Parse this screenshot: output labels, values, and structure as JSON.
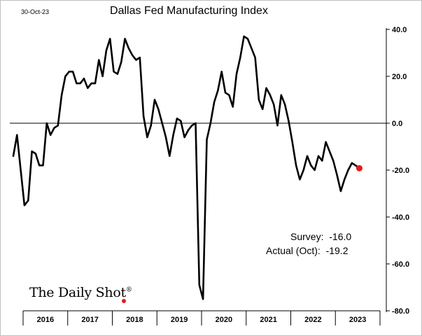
{
  "header": {
    "date": "30-Oct-23"
  },
  "chart_data": {
    "type": "line",
    "title": "Dallas Fed Manufacturing Index",
    "xlabel": "",
    "ylabel": "",
    "ylim": [
      -80,
      40
    ],
    "yticks": [
      40,
      20,
      0,
      -20,
      -40,
      -60,
      -80
    ],
    "ytick_labels": [
      "40.0",
      "20.0",
      "0.0",
      "-20.0",
      "-40.0",
      "-60.0",
      "-80.0"
    ],
    "year_labels": [
      "2016",
      "2017",
      "2018",
      "2019",
      "2020",
      "2021",
      "2022",
      "2023"
    ],
    "y_axis_side": "right",
    "grid": false,
    "zero_line": true,
    "line_color": "#000000",
    "highlight_color": "#e41c1c",
    "series": [
      {
        "x": [
          "2016-01",
          "2016-02",
          "2016-03",
          "2016-04",
          "2016-05",
          "2016-06",
          "2016-07",
          "2016-08",
          "2016-09",
          "2016-10",
          "2016-11",
          "2016-12",
          "2017-01",
          "2017-02",
          "2017-03",
          "2017-04",
          "2017-05",
          "2017-06",
          "2017-07",
          "2017-08",
          "2017-09",
          "2017-10",
          "2017-11",
          "2017-12",
          "2018-01",
          "2018-02",
          "2018-03",
          "2018-04",
          "2018-05",
          "2018-06",
          "2018-07",
          "2018-08",
          "2018-09",
          "2018-10",
          "2018-11",
          "2018-12",
          "2019-01",
          "2019-02",
          "2019-03",
          "2019-04",
          "2019-05",
          "2019-06",
          "2019-07",
          "2019-08",
          "2019-09",
          "2019-10",
          "2019-11",
          "2019-12",
          "2020-01",
          "2020-02",
          "2020-03",
          "2020-04",
          "2020-05",
          "2020-06",
          "2020-07",
          "2020-08",
          "2020-09",
          "2020-10",
          "2020-11",
          "2020-12",
          "2021-01",
          "2021-02",
          "2021-03",
          "2021-04",
          "2021-05",
          "2021-06",
          "2021-07",
          "2021-08",
          "2021-09",
          "2021-10",
          "2021-11",
          "2021-12",
          "2022-01",
          "2022-02",
          "2022-03",
          "2022-04",
          "2022-05",
          "2022-06",
          "2022-07",
          "2022-08",
          "2022-09",
          "2022-10",
          "2022-11",
          "2022-12",
          "2023-01",
          "2023-02",
          "2023-03",
          "2023-04",
          "2023-05",
          "2023-06",
          "2023-07",
          "2023-08",
          "2023-09",
          "2023-10"
        ],
        "values": [
          -14,
          -5,
          -20,
          -35,
          -33,
          -12,
          -13,
          -18,
          -18,
          0,
          -5,
          -2,
          -1,
          12,
          20,
          22,
          22,
          17,
          17,
          19,
          15,
          17,
          17,
          27,
          20,
          31,
          36,
          22,
          21,
          26,
          36,
          32,
          29,
          27,
          28,
          3,
          -6,
          -1,
          10,
          6,
          0,
          -6,
          -14,
          -5,
          2,
          1,
          -6,
          -3,
          -1,
          0,
          -69,
          -75,
          -7,
          0,
          9,
          14,
          22,
          13,
          12,
          7,
          21,
          28,
          37,
          36,
          32,
          28,
          10,
          6,
          15,
          12,
          8,
          -1,
          12,
          8,
          1,
          -8,
          -18,
          -24,
          -20,
          -14,
          -18,
          -20,
          -14,
          -16,
          -8,
          -12,
          -16,
          -22,
          -29,
          -24,
          -20,
          -17,
          -18,
          -19.2
        ]
      }
    ],
    "annotations": {
      "survey": "Survey:  -16.0",
      "actual": "Actual (Oct):  -19.2"
    }
  },
  "branding": {
    "logo_text": "The Daily Shot",
    "logo_mark": "®"
  }
}
